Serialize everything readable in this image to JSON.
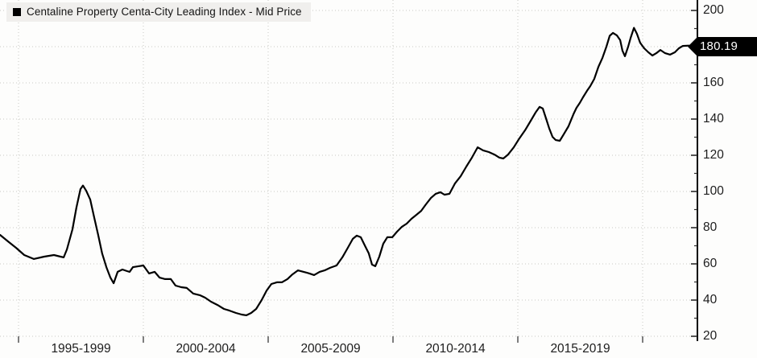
{
  "legend": {
    "label": "Centaline Property Centa-City Leading Index - Mid Price",
    "marker_color": "#000000"
  },
  "last_price_badge": {
    "value": "180.19"
  },
  "y_axis": {
    "side": "right",
    "tick_labels": [
      "200",
      "160",
      "140",
      "120",
      "100",
      "80",
      "60",
      "40",
      "20"
    ],
    "label_hidden_by_badge": "180",
    "min": 20,
    "max": 200,
    "major_step": 20,
    "minor_step": 10
  },
  "x_axis": {
    "tick_labels": [
      "1995-1999",
      "2000-2004",
      "2005-2009",
      "2010-2014",
      "2015-2019"
    ],
    "gridline_years": [
      1995,
      2000,
      2005,
      2010,
      2015,
      2020
    ]
  },
  "colors": {
    "line": "#000000",
    "grid": "#c9c9c5",
    "axis": "#000000",
    "tick": "#2a2a2a",
    "badge_bg": "#000000",
    "badge_text": "#ffffff",
    "legend_bg": "#f0efed",
    "text": "#1d1d1d",
    "background": "#fdfdfc"
  },
  "chart_data": {
    "type": "line",
    "title": "Centaline Property Centa-City Leading Index - Mid Price",
    "ylabel": "",
    "xlabel": "",
    "ylim": [
      20,
      200
    ],
    "xlim": [
      1994.25,
      2022.1
    ],
    "grid": "dotted",
    "legend_position": "top-left",
    "last_value": 180.19,
    "x": [
      1994.26,
      1994.58,
      1994.9,
      1995.23,
      1995.61,
      1996.03,
      1996.42,
      1996.68,
      1996.81,
      1996.94,
      1997.16,
      1997.32,
      1997.48,
      1997.58,
      1997.71,
      1997.87,
      1998.03,
      1998.19,
      1998.35,
      1998.52,
      1998.68,
      1998.81,
      1998.97,
      1999.16,
      1999.35,
      1999.45,
      1999.58,
      1999.81,
      2000.0,
      2000.23,
      2000.45,
      2000.65,
      2000.87,
      2001.1,
      2001.29,
      2001.52,
      2001.74,
      2002.0,
      2002.26,
      2002.48,
      2002.71,
      2002.97,
      2003.23,
      2003.45,
      2003.71,
      2003.94,
      2004.13,
      2004.32,
      2004.52,
      2004.74,
      2004.94,
      2005.13,
      2005.35,
      2005.55,
      2005.77,
      2005.97,
      2006.19,
      2006.42,
      2006.65,
      2006.84,
      2007.06,
      2007.26,
      2007.48,
      2007.74,
      2007.97,
      2008.19,
      2008.39,
      2008.55,
      2008.71,
      2008.87,
      2009.03,
      2009.16,
      2009.29,
      2009.45,
      2009.61,
      2009.77,
      2009.97,
      2010.16,
      2010.35,
      2010.55,
      2010.74,
      2010.94,
      2011.13,
      2011.32,
      2011.52,
      2011.71,
      2011.9,
      2012.06,
      2012.26,
      2012.48,
      2012.71,
      2012.94,
      2013.16,
      2013.39,
      2013.61,
      2013.84,
      2014.06,
      2014.26,
      2014.42,
      2014.61,
      2014.84,
      2015.06,
      2015.29,
      2015.52,
      2015.71,
      2015.87,
      2016.0,
      2016.13,
      2016.26,
      2016.39,
      2016.52,
      2016.68,
      2016.84,
      2017.03,
      2017.23,
      2017.35,
      2017.48,
      2017.61,
      2017.77,
      2017.9,
      2018.06,
      2018.23,
      2018.39,
      2018.55,
      2018.68,
      2018.81,
      2018.97,
      2019.1,
      2019.19,
      2019.29,
      2019.42,
      2019.52,
      2019.65,
      2019.77,
      2019.9,
      2020.06,
      2020.23,
      2020.39,
      2020.55,
      2020.71,
      2020.9,
      2021.1,
      2021.29,
      2021.45,
      2021.61,
      2021.84,
      2022.0
    ],
    "values": [
      76.0,
      72.4,
      68.9,
      64.9,
      62.7,
      64.0,
      64.9,
      64.0,
      63.6,
      68.0,
      79.1,
      91.1,
      101.3,
      103.3,
      100.4,
      95.6,
      85.8,
      76.0,
      65.8,
      58.2,
      52.4,
      49.3,
      55.6,
      56.9,
      56.0,
      55.6,
      58.2,
      58.7,
      59.1,
      54.7,
      55.6,
      52.4,
      51.6,
      51.6,
      48.0,
      47.1,
      46.7,
      43.6,
      42.7,
      41.3,
      39.1,
      37.3,
      35.1,
      34.2,
      32.9,
      32.0,
      31.6,
      32.9,
      35.1,
      40.0,
      45.3,
      48.9,
      49.8,
      49.8,
      51.6,
      54.2,
      56.4,
      55.6,
      54.7,
      53.8,
      55.6,
      56.4,
      57.8,
      59.1,
      63.6,
      68.9,
      73.8,
      75.6,
      74.7,
      70.2,
      65.8,
      59.6,
      58.7,
      64.0,
      71.1,
      74.7,
      74.7,
      77.8,
      80.4,
      82.2,
      84.9,
      87.1,
      89.3,
      92.9,
      96.4,
      98.7,
      99.6,
      98.2,
      98.7,
      104.4,
      108.4,
      113.8,
      118.7,
      124.4,
      122.7,
      121.8,
      120.4,
      118.7,
      118.2,
      120.4,
      124.4,
      129.3,
      133.8,
      139.1,
      143.6,
      146.7,
      145.8,
      140.4,
      134.7,
      130.2,
      128.4,
      128.0,
      131.6,
      136.0,
      142.7,
      146.2,
      148.9,
      152.0,
      155.6,
      158.2,
      162.2,
      168.9,
      173.8,
      180.0,
      186.0,
      187.6,
      186.2,
      183.6,
      177.8,
      174.7,
      180.0,
      184.9,
      190.4,
      187.1,
      182.2,
      179.1,
      176.9,
      175.1,
      176.4,
      178.2,
      176.4,
      175.6,
      176.9,
      179.1,
      180.4,
      180.6,
      180.19
    ]
  }
}
